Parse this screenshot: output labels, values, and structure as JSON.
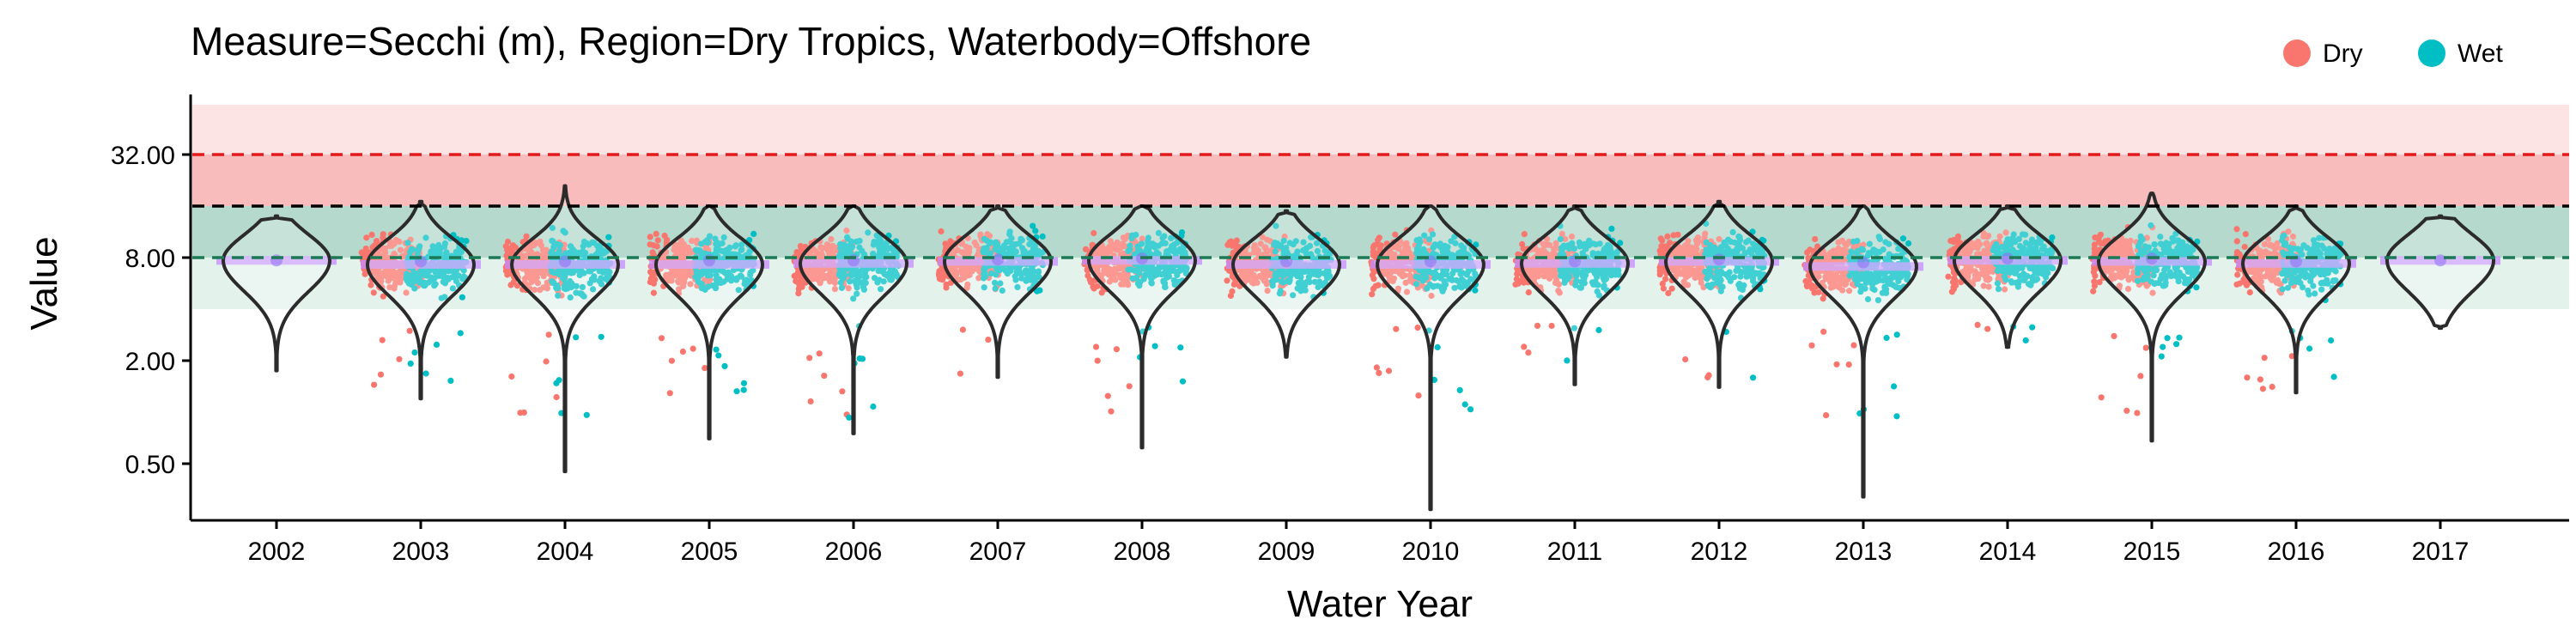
{
  "chart_data": {
    "type": "violin",
    "title": "Measure=Secchi (m), Region=Dry Tropics, Waterbody=Offshore",
    "xlabel": "Water Year",
    "ylabel": "Value",
    "y_scale": "log2",
    "ylim": [
      0.2,
      64
    ],
    "y_ticks": [
      {
        "value": 0.5,
        "label": "0.50"
      },
      {
        "value": 2,
        "label": "2.00"
      },
      {
        "value": 8,
        "label": "8.00"
      },
      {
        "value": 32,
        "label": "32.00"
      }
    ],
    "categories": [
      "2002",
      "2003",
      "2004",
      "2005",
      "2006",
      "2007",
      "2008",
      "2009",
      "2010",
      "2011",
      "2012",
      "2013",
      "2014",
      "2015",
      "2016",
      "2017"
    ],
    "legend": {
      "position": "top-right",
      "entries": [
        {
          "name": "Dry",
          "color": "#F8766D"
        },
        {
          "name": "Wet",
          "color": "#00BFC4"
        }
      ]
    },
    "reference_lines": [
      {
        "value": 32,
        "color": "#e31a1c"
      },
      {
        "value": 16,
        "color": "#000000"
      },
      {
        "value": 8,
        "color": "#1b7a55"
      }
    ],
    "bands": [
      {
        "from": 32,
        "to": 64,
        "color": "#fce4e4"
      },
      {
        "from": 16,
        "to": 32,
        "color": "#f9bcbc"
      },
      {
        "from": 8,
        "to": 16,
        "color": "#b5d9cc"
      },
      {
        "from": 4,
        "to": 8,
        "color": "#e4f2ec"
      }
    ],
    "violins": [
      {
        "year": "2002",
        "min": 1.75,
        "max": 14,
        "median": 7.7,
        "mean": 7.7,
        "has_points": false
      },
      {
        "year": "2003",
        "min": 1.2,
        "max": 17,
        "median": 7.3,
        "mean": 7.6,
        "has_points": true
      },
      {
        "year": "2004",
        "min": 0.45,
        "max": 21,
        "median": 7.3,
        "mean": 7.6,
        "has_points": true
      },
      {
        "year": "2005",
        "min": 0.7,
        "max": 16,
        "median": 7.3,
        "mean": 7.7,
        "has_points": true
      },
      {
        "year": "2006",
        "min": 0.75,
        "max": 16,
        "median": 7.4,
        "mean": 7.7,
        "has_points": true
      },
      {
        "year": "2007",
        "min": 1.6,
        "max": 16,
        "median": 7.6,
        "mean": 7.8,
        "has_points": true
      },
      {
        "year": "2008",
        "min": 0.62,
        "max": 16,
        "median": 7.7,
        "mean": 7.9,
        "has_points": true
      },
      {
        "year": "2009",
        "min": 2.1,
        "max": 15,
        "median": 7.3,
        "mean": 7.6,
        "has_points": true
      },
      {
        "year": "2010",
        "min": 0.27,
        "max": 16,
        "median": 7.3,
        "mean": 7.6,
        "has_points": true
      },
      {
        "year": "2011",
        "min": 1.45,
        "max": 16,
        "median": 7.4,
        "mean": 7.6,
        "has_points": true
      },
      {
        "year": "2012",
        "min": 1.4,
        "max": 17,
        "median": 7.6,
        "mean": 7.8,
        "has_points": true
      },
      {
        "year": "2013",
        "min": 0.32,
        "max": 16,
        "median": 7.1,
        "mean": 7.5,
        "has_points": true
      },
      {
        "year": "2014",
        "min": 2.4,
        "max": 16,
        "median": 7.7,
        "mean": 7.9,
        "has_points": true
      },
      {
        "year": "2015",
        "min": 0.68,
        "max": 19,
        "median": 7.6,
        "mean": 7.9,
        "has_points": true
      },
      {
        "year": "2016",
        "min": 1.3,
        "max": 16,
        "median": 7.4,
        "mean": 7.6,
        "has_points": true
      },
      {
        "year": "2017",
        "min": 3.1,
        "max": 14,
        "median": 7.7,
        "mean": 7.7,
        "has_points": false
      }
    ]
  }
}
